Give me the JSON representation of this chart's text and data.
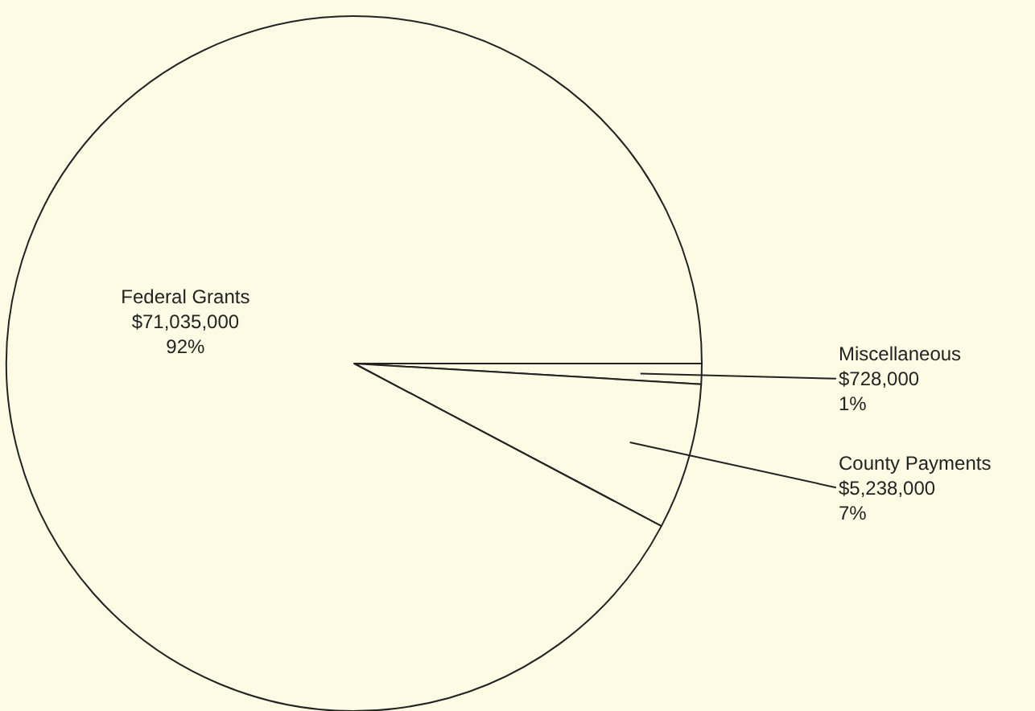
{
  "chart_data": {
    "type": "pie",
    "categories": [
      "Miscellaneous",
      "County Payments",
      "Federal Grants"
    ],
    "values": [
      728000,
      5238000,
      71035000
    ],
    "value_labels": [
      "$728,000\n1%",
      "$5,238,000\n7%",
      "$71,035,000\n92%"
    ],
    "colors": [
      "#fdfbe4",
      "#fdfbe4",
      "#fdfbe4"
    ],
    "legend": false
  }
}
